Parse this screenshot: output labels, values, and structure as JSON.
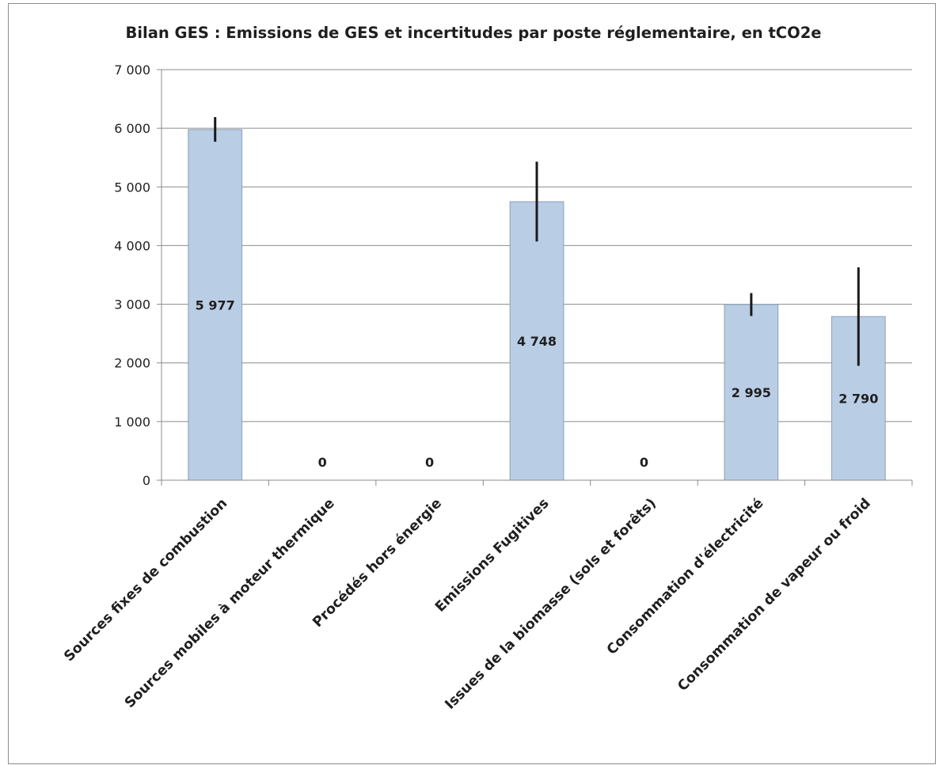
{
  "chart_data": {
    "type": "bar",
    "title": "Bilan GES : Emissions de GES et incertitudes par  poste réglementaire, en tCO2e",
    "xlabel": "",
    "ylabel": "",
    "ylim": [
      0,
      7000
    ],
    "yticks": [
      0,
      1000,
      2000,
      3000,
      4000,
      5000,
      6000,
      7000
    ],
    "ytick_labels": [
      "0",
      "1 000",
      "2 000",
      "3 000",
      "4 000",
      "5 000",
      "6 000",
      "7 000"
    ],
    "grid": true,
    "legend": "none",
    "categories": [
      "Sources fixes de combustion",
      "Sources mobiles à moteur thermique",
      "Procédés hors énergie",
      "Emissions Fugitives",
      "Issues de la biomasse (sols et forêts)",
      "Consommation d'électricité",
      "Consommation de vapeur ou froid"
    ],
    "values": [
      5977,
      0,
      0,
      4748,
      0,
      2995,
      2790
    ],
    "data_labels": [
      "5 977",
      "0",
      "0",
      "4 748",
      "0",
      "2 995",
      "2 790"
    ],
    "error_bars": [
      {
        "low": 5770,
        "high": 6190
      },
      null,
      null,
      {
        "low": 4070,
        "high": 5430
      },
      null,
      {
        "low": 2800,
        "high": 3190
      },
      {
        "low": 1950,
        "high": 3630
      }
    ],
    "colors": {
      "bar_fill": "#b9cde5",
      "bar_stroke": "#8c9fb8",
      "error_bar": "#1a1a1a",
      "gridline": "#8c8c8c"
    }
  }
}
